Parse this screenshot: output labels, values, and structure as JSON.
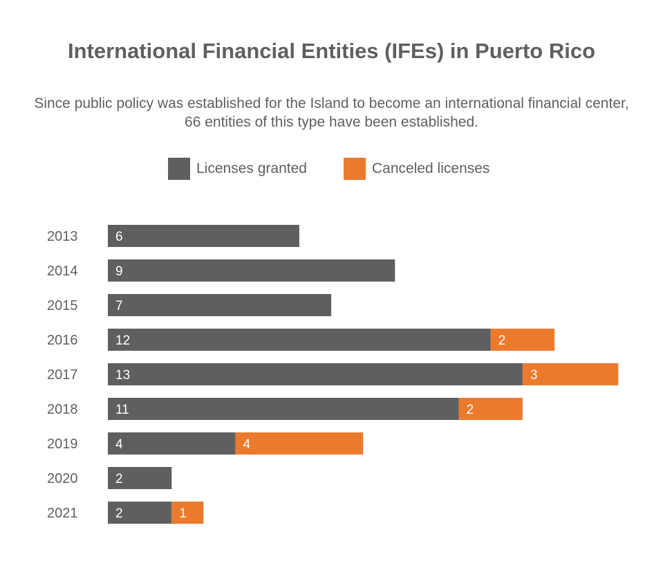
{
  "colors": {
    "granted": "#5f5f5f",
    "canceled": "#ec7a2d",
    "text": "#5f5f5f"
  },
  "chart_data": {
    "type": "bar",
    "orientation": "horizontal",
    "stacked": true,
    "title": "International Financial Entities (IFEs) in Puerto Rico",
    "subtitle": "Since public policy was established for the Island to become an international financial center, 66 entities of this type have been established.",
    "categories": [
      "2013",
      "2014",
      "2015",
      "2016",
      "2017",
      "2018",
      "2019",
      "2020",
      "2021"
    ],
    "series": [
      {
        "name": "Licenses granted",
        "color": "#5f5f5f",
        "values": [
          6,
          9,
          7,
          12,
          13,
          11,
          4,
          2,
          2
        ]
      },
      {
        "name": "Canceled licenses",
        "color": "#ec7a2d",
        "values": [
          0,
          0,
          0,
          2,
          3,
          2,
          4,
          0,
          1
        ]
      }
    ],
    "xlim": [
      0,
      16
    ],
    "grid": false,
    "legend_position": "top-center"
  }
}
